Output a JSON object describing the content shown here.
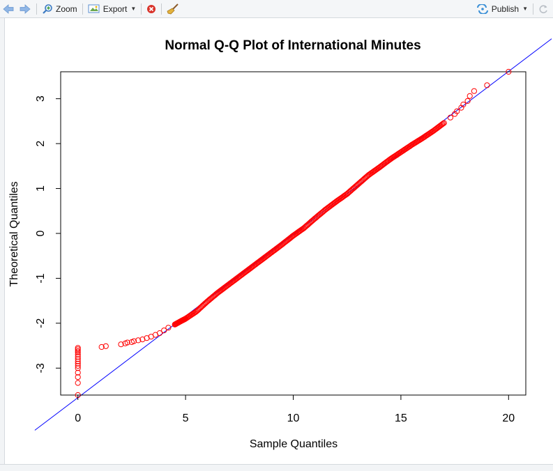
{
  "toolbar": {
    "zoom_label": "Zoom",
    "export_label": "Export",
    "publish_label": "Publish"
  },
  "chart_data": {
    "type": "scatter",
    "title": "Normal Q-Q Plot of International Minutes",
    "xlabel": "Sample Quantiles",
    "ylabel": "Theoretical Quantiles",
    "xlim": [
      -0.8,
      20.8
    ],
    "ylim": [
      -3.6,
      3.6
    ],
    "x_ticks": [
      0,
      5,
      10,
      15,
      20
    ],
    "y_ticks": [
      -3,
      -2,
      -1,
      0,
      1,
      2,
      3
    ],
    "x_tick_labels": [
      "0",
      "5",
      "10",
      "15",
      "20"
    ],
    "y_tick_labels": [
      "-3",
      "-2",
      "-1",
      "0",
      "1",
      "2",
      "3"
    ],
    "reference_line": {
      "slope": 0.3633,
      "intercept": -3.657,
      "color": "#0000ff"
    },
    "point_color": "#ff0000",
    "series": [
      {
        "points": [
          [
            0,
            -3.6
          ],
          [
            0,
            -3.33
          ],
          [
            0,
            -3.2
          ],
          [
            0,
            -3.1
          ],
          [
            0,
            -3.0
          ],
          [
            0,
            -2.95
          ],
          [
            0,
            -2.9
          ],
          [
            0,
            -2.85
          ],
          [
            0,
            -2.8
          ],
          [
            0,
            -2.75
          ],
          [
            0,
            -2.7
          ],
          [
            0,
            -2.65
          ],
          [
            0,
            -2.62
          ],
          [
            0,
            -2.58
          ],
          [
            0,
            -2.55
          ],
          [
            1.1,
            -2.53
          ],
          [
            1.3,
            -2.51
          ],
          [
            2.0,
            -2.47
          ],
          [
            2.2,
            -2.45
          ],
          [
            2.3,
            -2.43
          ],
          [
            2.5,
            -2.42
          ],
          [
            2.6,
            -2.4
          ],
          [
            2.8,
            -2.38
          ],
          [
            3.0,
            -2.36
          ],
          [
            3.2,
            -2.33
          ],
          [
            3.4,
            -2.3
          ],
          [
            3.6,
            -2.26
          ],
          [
            3.8,
            -2.22
          ],
          [
            4.0,
            -2.16
          ],
          [
            4.2,
            -2.1
          ],
          [
            4.5,
            -2.03
          ],
          [
            4.8,
            -1.95
          ],
          [
            5.0,
            -1.9
          ],
          [
            5.5,
            -1.74
          ],
          [
            6.0,
            -1.52
          ],
          [
            6.5,
            -1.32
          ],
          [
            7.0,
            -1.14
          ],
          [
            7.5,
            -0.96
          ],
          [
            8.0,
            -0.78
          ],
          [
            8.5,
            -0.6
          ],
          [
            9.0,
            -0.42
          ],
          [
            9.5,
            -0.24
          ],
          [
            10.0,
            -0.05
          ],
          [
            10.5,
            0.12
          ],
          [
            11.0,
            0.33
          ],
          [
            11.5,
            0.53
          ],
          [
            12.0,
            0.71
          ],
          [
            12.5,
            0.88
          ],
          [
            13.0,
            1.09
          ],
          [
            13.5,
            1.3
          ],
          [
            14.0,
            1.47
          ],
          [
            14.5,
            1.65
          ],
          [
            15.0,
            1.81
          ],
          [
            15.5,
            1.97
          ],
          [
            16.0,
            2.12
          ],
          [
            16.5,
            2.28
          ],
          [
            17.0,
            2.46
          ],
          [
            17.3,
            2.58
          ],
          [
            17.5,
            2.66
          ],
          [
            17.6,
            2.72
          ],
          [
            17.8,
            2.8
          ],
          [
            17.9,
            2.87
          ],
          [
            18.1,
            2.95
          ],
          [
            18.2,
            3.06
          ],
          [
            18.4,
            3.17
          ],
          [
            19.0,
            3.3
          ],
          [
            20.0,
            3.6
          ]
        ]
      }
    ]
  }
}
